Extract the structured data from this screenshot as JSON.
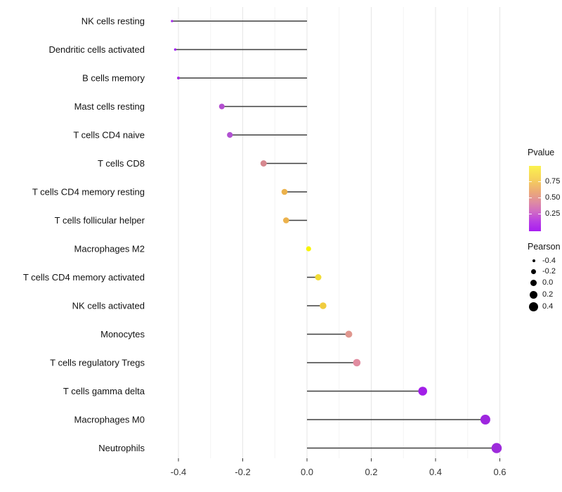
{
  "chart_data": {
    "type": "scatter",
    "subtype": "lollipop",
    "title": "",
    "xlabel": "",
    "ylabel": "",
    "xlim": [
      -0.45,
      0.65
    ],
    "grid": "on",
    "x_axis": {
      "tick_values": [
        -0.4,
        -0.2,
        0.0,
        0.2,
        0.4,
        0.6
      ],
      "tick_labels": [
        "-0.4",
        "-0.2",
        "0.0",
        "0.2",
        "0.4",
        "0.6"
      ],
      "minor_step": 0.1
    },
    "categories": [
      "NK cells resting",
      "Dendritic cells activated",
      "B cells memory",
      "Mast cells resting",
      "T cells CD4 naive",
      "T cells CD8",
      "T cells CD4 memory resting",
      "T cells follicular helper",
      "Macrophages M2",
      "T cells CD4 memory activated",
      "NK cells activated",
      "Monocytes",
      "T cells regulatory  Tregs",
      "T cells gamma delta",
      "Macrophages M0",
      "Neutrophils"
    ],
    "points": [
      {
        "label": "NK cells resting",
        "pearson": -0.42,
        "pvalue": 0.04,
        "color": "#A524EE",
        "r": 1.6
      },
      {
        "label": "Dendritic cells activated",
        "pearson": -0.41,
        "pvalue": 0.03,
        "color": "#A321F0",
        "r": 1.7
      },
      {
        "label": "B cells memory",
        "pearson": -0.4,
        "pvalue": 0.06,
        "color": "#A92BE2",
        "r": 2.0
      },
      {
        "label": "Mast cells resting",
        "pearson": -0.265,
        "pvalue": 0.21,
        "color": "#B44FD0",
        "r": 4.0
      },
      {
        "label": "T cells CD4 naive",
        "pearson": -0.24,
        "pvalue": 0.2,
        "color": "#B152D2",
        "r": 4.1
      },
      {
        "label": "T cells CD8",
        "pearson": -0.135,
        "pvalue": 0.45,
        "color": "#D6888F",
        "r": 4.5
      },
      {
        "label": "T cells CD4 memory resting",
        "pearson": -0.07,
        "pvalue": 0.67,
        "color": "#ECB24C",
        "r": 4.3
      },
      {
        "label": "T cells follicular helper",
        "pearson": -0.065,
        "pvalue": 0.67,
        "color": "#ECB24C",
        "r": 4.3
      },
      {
        "label": "Macrophages M2",
        "pearson": 0.005,
        "pvalue": 0.93,
        "color": "#F8F403",
        "r": 3.6
      },
      {
        "label": "T cells CD4 memory activated",
        "pearson": 0.035,
        "pvalue": 0.82,
        "color": "#F2DC35",
        "r": 4.5
      },
      {
        "label": "NK cells activated",
        "pearson": 0.05,
        "pvalue": 0.77,
        "color": "#F0CC3F",
        "r": 4.8
      },
      {
        "label": "Monocytes",
        "pearson": 0.13,
        "pvalue": 0.57,
        "color": "#E0978F",
        "r": 5.0
      },
      {
        "label": "T cells regulatory  Tregs",
        "pearson": 0.155,
        "pvalue": 0.48,
        "color": "#E18CA0",
        "r": 5.3
      },
      {
        "label": "T cells gamma delta",
        "pearson": 0.36,
        "pvalue": 0.02,
        "color": "#A21FE8",
        "r": 6.3
      },
      {
        "label": "Macrophages M0",
        "pearson": 0.555,
        "pvalue": 0.03,
        "color": "#9E26DF",
        "r": 7.0
      },
      {
        "label": "Neutrophils",
        "pearson": 0.59,
        "pvalue": 0.02,
        "color": "#9D2BDB",
        "r": 7.3
      }
    ],
    "legend_pvalue": {
      "title": "Pvalue",
      "position": "right",
      "ticks": [
        "0.75",
        "0.50",
        "0.25"
      ],
      "gradient": [
        {
          "pos": 0,
          "color": "#FBF24E"
        },
        {
          "pos": 0.2,
          "color": "#F6D25A"
        },
        {
          "pos": 0.4,
          "color": "#EBA878"
        },
        {
          "pos": 0.55,
          "color": "#DF8DA0"
        },
        {
          "pos": 0.7,
          "color": "#D06BC4"
        },
        {
          "pos": 0.85,
          "color": "#B93EE4"
        },
        {
          "pos": 1,
          "color": "#A81EF0"
        }
      ]
    },
    "legend_pearson": {
      "title": "Pearson",
      "position": "right",
      "entries": [
        {
          "label": "-0.4",
          "r": 2.0
        },
        {
          "label": "-0.2",
          "r": 3.5
        },
        {
          "label": "0.0",
          "r": 4.5
        },
        {
          "label": "0.2",
          "r": 5.5
        },
        {
          "label": "0.4",
          "r": 6.5
        }
      ]
    },
    "colors": {
      "segment": "#3F3F3F",
      "grid_major": "#E7E7E7",
      "grid_minor": "#F2F2F2",
      "axis_text": "#363636",
      "category_text": "#121212",
      "tick_mark": "#333333",
      "pvalue_low": "#A020F0",
      "pvalue_high": "#FFFF00"
    }
  }
}
